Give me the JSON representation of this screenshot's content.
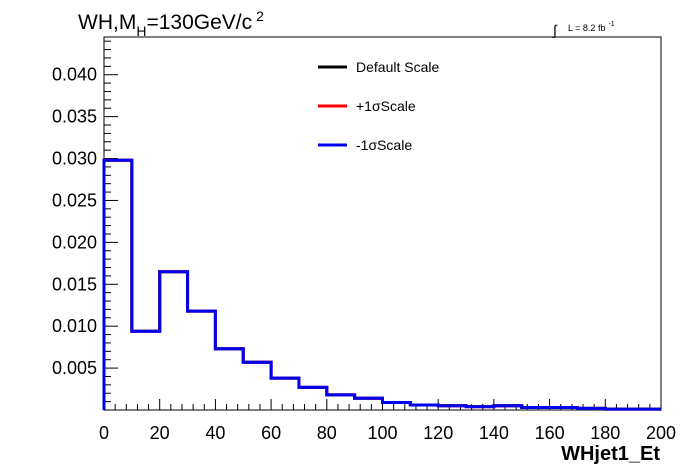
{
  "chart_data": {
    "type": "line",
    "title_parts": {
      "main": "WH,M",
      "sub": "H",
      "rest": "=130GeV/c",
      "sup": "2"
    },
    "lumi_parts": {
      "integral": "∫",
      "text": "L = 8.2 fb",
      "sup": "-1"
    },
    "xlabel": "WHjet1_Et",
    "ylabel": "",
    "xlim": [
      0,
      200
    ],
    "ylim": [
      0,
      0.0445
    ],
    "x_ticks": [
      0,
      20,
      40,
      60,
      80,
      100,
      120,
      140,
      160,
      180,
      200
    ],
    "x_tick_labels": [
      "0",
      "20",
      "40",
      "60",
      "80",
      "100",
      "120",
      "140",
      "160",
      "180",
      "200"
    ],
    "y_ticks": [
      0.005,
      0.01,
      0.015,
      0.02,
      0.025,
      0.03,
      0.035,
      0.04
    ],
    "y_tick_labels": [
      "0.005",
      "0.010",
      "0.015",
      "0.020",
      "0.025",
      "0.030",
      "0.035",
      "0.040"
    ],
    "bin_edges": [
      0,
      10,
      20,
      30,
      40,
      50,
      60,
      70,
      80,
      90,
      100,
      110,
      120,
      130,
      140,
      150,
      160,
      170,
      180,
      190,
      200
    ],
    "series": [
      {
        "name": "Default Scale",
        "color": "#000000",
        "values": [
          0.0298,
          0.0094,
          0.0165,
          0.0118,
          0.0073,
          0.0057,
          0.0038,
          0.0027,
          0.0018,
          0.0014,
          0.0009,
          0.0006,
          0.0005,
          0.0004,
          0.0005,
          0.0003,
          0.0003,
          0.0002,
          0.0001,
          0.0001
        ]
      },
      {
        "name": "+1σScale",
        "color": "#ff0000",
        "values": [
          0.0298,
          0.0094,
          0.0165,
          0.0118,
          0.0073,
          0.0057,
          0.0038,
          0.0027,
          0.0018,
          0.0014,
          0.0009,
          0.0006,
          0.0005,
          0.0004,
          0.0005,
          0.0003,
          0.0003,
          0.0002,
          0.0001,
          0.0001
        ]
      },
      {
        "name": "-1σScale",
        "color": "#0000ee",
        "values": [
          0.0298,
          0.0094,
          0.0165,
          0.0118,
          0.0073,
          0.0057,
          0.0038,
          0.0027,
          0.0018,
          0.0014,
          0.0009,
          0.0006,
          0.0005,
          0.0004,
          0.0005,
          0.0003,
          0.0003,
          0.0002,
          0.0001,
          0.0001
        ]
      }
    ],
    "legend_placement": "top-center",
    "grid": false
  }
}
